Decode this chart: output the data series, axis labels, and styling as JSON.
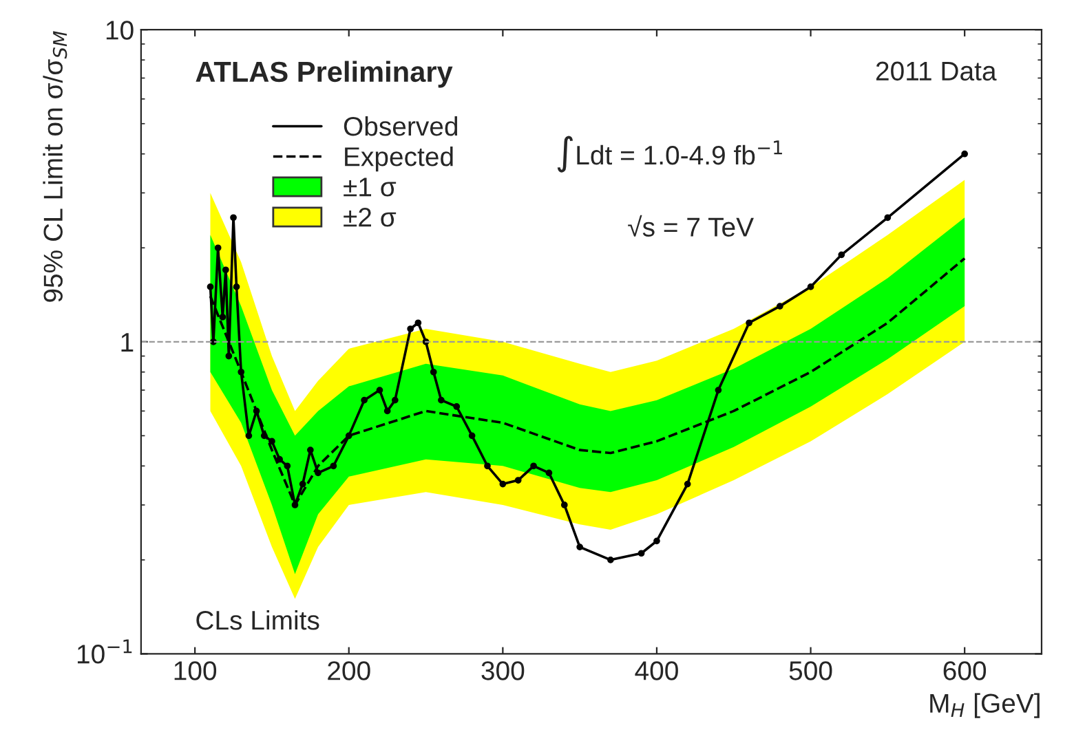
{
  "chart_data": {
    "type": "line",
    "xlabel": "M$_{H}$ [GeV]",
    "ylabel": "95% CL Limit on σ/σ$_{SM}$",
    "log": "y",
    "xlim": [
      65,
      650
    ],
    "xticks": [
      100,
      200,
      300,
      400,
      500,
      600
    ],
    "ylim": [
      0.1,
      10
    ],
    "yticks": [
      {
        "value": 0.1,
        "label": "10$^{−1}$"
      },
      1,
      10
    ],
    "grid": false,
    "legend": "top left",
    "ref_lines": [
      {
        "axis": "y",
        "value": 1,
        "line_style": "dashed",
        "color": "#999999"
      }
    ],
    "annotations": [
      "ATLAS Preliminary",
      "2011 Data",
      "∫Ldt = 1.0-4.9 fb$^{−1}$",
      "√s = 7 TeV",
      "CLs Limits"
    ],
    "series": [
      {
        "name": "±2 σ",
        "type": "line",
        "color": "#ffff00",
        "x": [
          110,
          130,
          150,
          165,
          180,
          200,
          250,
          300,
          350,
          370,
          400,
          450,
          500,
          550,
          600
        ],
        "values": [
          null,
          null,
          null,
          null,
          null,
          null,
          null,
          null,
          null,
          null,
          null,
          null,
          null,
          null,
          null
        ],
        "lower": [
          0.6,
          0.4,
          0.22,
          0.15,
          0.22,
          0.3,
          0.33,
          0.3,
          0.26,
          0.25,
          0.28,
          0.36,
          0.48,
          0.68,
          1.0
        ],
        "upper": [
          3.0,
          1.8,
          0.9,
          0.6,
          0.75,
          0.95,
          1.1,
          1.0,
          0.85,
          0.8,
          0.87,
          1.1,
          1.5,
          2.2,
          3.3
        ]
      },
      {
        "name": "±1 σ",
        "type": "line",
        "color": "#00ff00",
        "x": [
          110,
          130,
          150,
          165,
          180,
          200,
          250,
          300,
          350,
          370,
          400,
          450,
          500,
          550,
          600
        ],
        "values": [
          null,
          null,
          null,
          null,
          null,
          null,
          null,
          null,
          null,
          null,
          null,
          null,
          null,
          null,
          null
        ],
        "lower": [
          0.8,
          0.55,
          0.3,
          0.18,
          0.28,
          0.37,
          0.42,
          0.4,
          0.34,
          0.33,
          0.36,
          0.46,
          0.62,
          0.88,
          1.3
        ],
        "upper": [
          2.2,
          1.3,
          0.7,
          0.5,
          0.6,
          0.72,
          0.85,
          0.78,
          0.63,
          0.6,
          0.65,
          0.82,
          1.1,
          1.6,
          2.5
        ]
      },
      {
        "name": "Expected",
        "color": "#000000",
        "line_style": "dashed",
        "marker": "none",
        "x": [
          110,
          130,
          150,
          165,
          180,
          200,
          250,
          300,
          350,
          370,
          400,
          450,
          500,
          550,
          600
        ],
        "values": [
          1.4,
          0.8,
          0.45,
          0.3,
          0.4,
          0.5,
          0.6,
          0.55,
          0.45,
          0.44,
          0.48,
          0.6,
          0.8,
          1.15,
          1.85
        ]
      },
      {
        "name": "Observed",
        "color": "#000000",
        "line_style": "solid",
        "marker": "circle",
        "x": [
          110,
          112,
          115,
          118,
          120,
          122,
          125,
          127,
          130,
          135,
          140,
          145,
          150,
          155,
          160,
          165,
          170,
          175,
          180,
          190,
          200,
          210,
          220,
          225,
          230,
          240,
          245,
          250,
          255,
          260,
          270,
          280,
          290,
          300,
          310,
          320,
          330,
          340,
          350,
          370,
          390,
          400,
          420,
          440,
          460,
          480,
          500,
          520,
          550,
          600
        ],
        "values": [
          1.5,
          1.0,
          2.0,
          1.2,
          1.7,
          0.9,
          2.5,
          1.5,
          0.8,
          0.5,
          0.6,
          0.5,
          0.48,
          0.42,
          0.4,
          0.3,
          0.35,
          0.45,
          0.38,
          0.4,
          0.5,
          0.65,
          0.7,
          0.6,
          0.65,
          1.1,
          1.15,
          1.0,
          0.8,
          0.65,
          0.62,
          0.5,
          0.4,
          0.35,
          0.36,
          0.4,
          0.38,
          0.3,
          0.22,
          0.2,
          0.21,
          0.23,
          0.35,
          0.7,
          1.15,
          1.3,
          1.5,
          1.9,
          2.5,
          4.0
        ]
      }
    ]
  }
}
